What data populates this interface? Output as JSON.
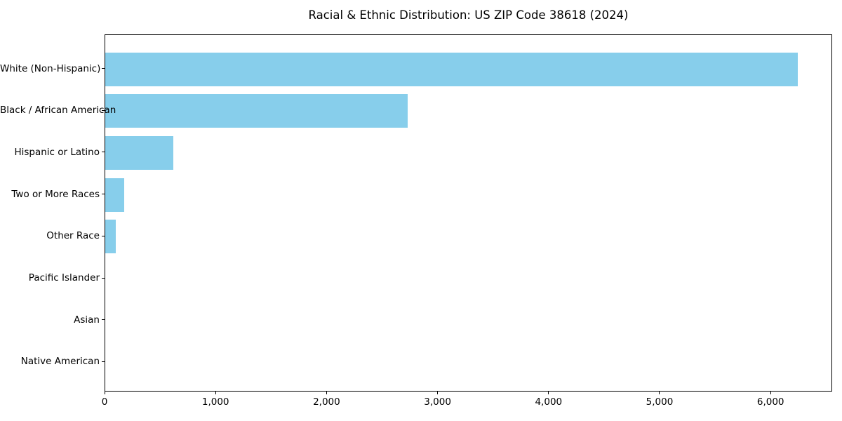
{
  "title": "Racial & Ethnic Distribution: US ZIP Code 38618 (2024)",
  "chart_data": {
    "type": "bar",
    "orientation": "horizontal",
    "title": "Racial & Ethnic Distribution: US ZIP Code 38618 (2024)",
    "xlabel": "",
    "ylabel": "",
    "categories": [
      "White (Non-Hispanic)",
      "Black / African American",
      "Hispanic or Latino",
      "Two or More Races",
      "Other Race",
      "Pacific Islander",
      "Asian",
      "Native American"
    ],
    "values": [
      6240,
      2725,
      615,
      170,
      95,
      0,
      0,
      0
    ],
    "xlim": [
      0,
      6555
    ],
    "xticks": [
      0,
      1000,
      2000,
      3000,
      4000,
      5000,
      6000
    ],
    "xtick_labels": [
      "0",
      "1,000",
      "2,000",
      "3,000",
      "4,000",
      "5,000",
      "6,000"
    ],
    "bar_color": "#87CEEB",
    "grid": false,
    "legend": null
  }
}
